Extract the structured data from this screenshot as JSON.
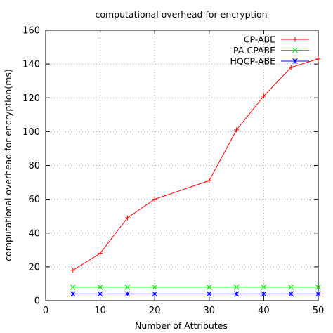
{
  "chart_data": {
    "type": "line",
    "title": "computational overhead for encryption",
    "xlabel": "Number of Attributes",
    "ylabel": "computational overhead for encryption(ms)",
    "xlim": [
      0,
      50
    ],
    "ylim": [
      0,
      160
    ],
    "xticks": [
      0,
      10,
      20,
      30,
      40,
      50
    ],
    "yticks": [
      0,
      20,
      40,
      60,
      80,
      100,
      120,
      140,
      160
    ],
    "grid": true,
    "legend_position": "top-right",
    "series": [
      {
        "name": "CP-ABE",
        "color": "#ff0000",
        "marker": "plus",
        "x": [
          5,
          10,
          15,
          20,
          30,
          35,
          40,
          45,
          50
        ],
        "y": [
          18,
          28,
          49,
          60,
          71,
          101,
          121,
          138,
          143
        ]
      },
      {
        "name": "PA-CPABE",
        "color": "#00e000",
        "marker": "cross",
        "x": [
          5,
          10,
          15,
          20,
          30,
          35,
          40,
          45,
          50
        ],
        "y": [
          8,
          8,
          8,
          8,
          8,
          8,
          8,
          8,
          8
        ]
      },
      {
        "name": "HQCP-ABE",
        "color": "#0000ff",
        "marker": "star",
        "x": [
          5,
          10,
          15,
          20,
          30,
          35,
          40,
          45,
          50
        ],
        "y": [
          4,
          4,
          4,
          4,
          4,
          4,
          4,
          4,
          4
        ]
      }
    ]
  }
}
